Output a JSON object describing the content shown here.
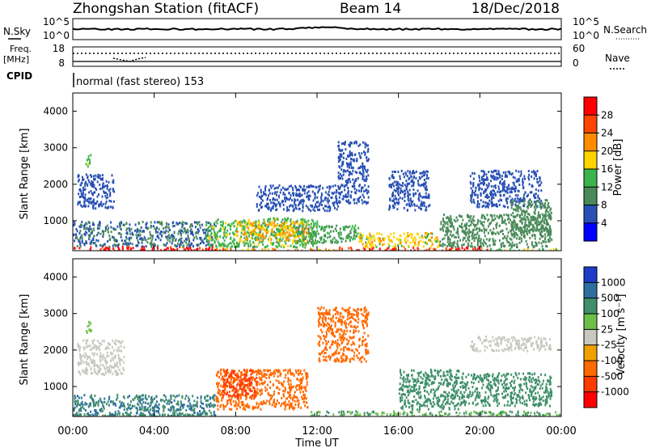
{
  "header": {
    "station": "Zhongshan Station (fitACF)",
    "beam": "Beam 14",
    "date": "18/Dec/2018"
  },
  "strips": {
    "nsky_label": "N.Sky",
    "nsky_ticks": [
      "10^5",
      "10^0"
    ],
    "nsearch_label": "N.Search",
    "nsearch_ticks": [
      "10^5",
      "10^0"
    ],
    "freq_label": "Freq.",
    "freq_unit": "[MHz]",
    "freq_ticks": [
      "18",
      "8"
    ],
    "nave_label": "Nave",
    "nave_ticks": [
      "60",
      "0"
    ],
    "cpid_label": "CPID",
    "cpid_text": "normal (fast stereo) 153"
  },
  "axes": {
    "y_label": "Slant Range [km]",
    "y_ticks": [
      "4000",
      "3000",
      "2000",
      "1000"
    ],
    "x_label": "Time UT",
    "x_ticks": [
      "00:00",
      "04:00",
      "08:00",
      "12:00",
      "16:00",
      "20:00",
      "00:00"
    ]
  },
  "power_scale": {
    "title": "Power [dB]",
    "labels": [
      "28",
      "24",
      "20",
      "16",
      "12",
      "8",
      "4"
    ],
    "colors": [
      "#ff0000",
      "#ff4500",
      "#ff8c00",
      "#ffd400",
      "#3cb44b",
      "#4a8a5a",
      "#2850b4",
      "#0000ff"
    ]
  },
  "velocity_scale": {
    "title": "Velocity [m s⁻¹]",
    "labels": [
      "1000",
      "500",
      "100",
      "25",
      "-25",
      "-100",
      "-500",
      "-1000"
    ],
    "colors": [
      "#1e3cc8",
      "#2e6fa0",
      "#3f8f6a",
      "#6cc04a",
      "#c8c8c0",
      "#f0a000",
      "#ff6a00",
      "#ff3c00",
      "#ff0000"
    ]
  },
  "chart_data": [
    {
      "type": "heatmap",
      "title": "Zhongshan Station (fitACF) Beam 14",
      "xlabel": "Time UT",
      "ylabel": "Slant Range [km]",
      "xlim": [
        0,
        24
      ],
      "ylim": [
        180,
        4500
      ],
      "quantity": "Power [dB]",
      "colorbar_range": [
        0,
        32
      ],
      "regions": [
        {
          "t0": 0.0,
          "t1": 7.0,
          "r0": 180,
          "r1": 320,
          "value": 30
        },
        {
          "t0": 7.0,
          "t1": 13.0,
          "r0": 180,
          "r1": 260,
          "value": 22
        },
        {
          "t0": 13.0,
          "t1": 20.5,
          "r0": 180,
          "r1": 300,
          "value": 28
        },
        {
          "t0": 20.5,
          "t1": 24.0,
          "r0": 180,
          "r1": 260,
          "value": 16
        },
        {
          "t0": 0.0,
          "t1": 7.0,
          "r0": 320,
          "r1": 1000,
          "value": 8
        },
        {
          "t0": 6.5,
          "t1": 12.0,
          "r0": 300,
          "r1": 1100,
          "value": 14
        },
        {
          "t0": 8.0,
          "t1": 11.5,
          "r0": 450,
          "r1": 1000,
          "value": 20
        },
        {
          "t0": 11.0,
          "t1": 14.0,
          "r0": 400,
          "r1": 900,
          "value": 12
        },
        {
          "t0": 14.0,
          "t1": 18.0,
          "r0": 300,
          "r1": 700,
          "value": 18
        },
        {
          "t0": 18.0,
          "t1": 23.5,
          "r0": 300,
          "r1": 1200,
          "value": 10
        },
        {
          "t0": 0.2,
          "t1": 2.0,
          "r0": 1350,
          "r1": 2300,
          "value": 6
        },
        {
          "t0": 0.6,
          "t1": 0.9,
          "r0": 2500,
          "r1": 2850,
          "value": 14
        },
        {
          "t0": 9.0,
          "t1": 13.0,
          "r0": 1300,
          "r1": 2000,
          "value": 6
        },
        {
          "t0": 13.0,
          "t1": 14.5,
          "r0": 1500,
          "r1": 3200,
          "value": 6
        },
        {
          "t0": 15.5,
          "t1": 17.5,
          "r0": 1300,
          "r1": 2400,
          "value": 6
        },
        {
          "t0": 19.5,
          "t1": 23.0,
          "r0": 1400,
          "r1": 2400,
          "value": 6
        },
        {
          "t0": 21.5,
          "t1": 23.5,
          "r0": 600,
          "r1": 1600,
          "value": 10
        }
      ]
    },
    {
      "type": "heatmap",
      "xlabel": "Time UT",
      "ylabel": "Slant Range [km]",
      "xlim": [
        0,
        24
      ],
      "ylim": [
        180,
        4500
      ],
      "quantity": "Velocity [m s-1]",
      "colorbar_range": [
        -1000,
        1000
      ],
      "regions": [
        {
          "t0": 0.0,
          "t1": 7.0,
          "r0": 180,
          "r1": 800,
          "value": 500
        },
        {
          "t0": 0.0,
          "t1": 7.0,
          "r0": 180,
          "r1": 280,
          "value": 150
        },
        {
          "t0": 7.0,
          "t1": 11.5,
          "r0": 400,
          "r1": 1500,
          "value": -200
        },
        {
          "t0": 7.3,
          "t1": 9.0,
          "r0": 700,
          "r1": 1500,
          "value": -600
        },
        {
          "t0": 11.5,
          "t1": 24.0,
          "r0": 180,
          "r1": 350,
          "value": 100
        },
        {
          "t0": 12.0,
          "t1": 14.5,
          "r0": 1700,
          "r1": 3200,
          "value": -300
        },
        {
          "t0": 16.0,
          "t1": 19.0,
          "r0": 400,
          "r1": 1500,
          "value": 200
        },
        {
          "t0": 19.0,
          "t1": 23.5,
          "r0": 500,
          "r1": 1400,
          "value": 400
        },
        {
          "t0": 0.2,
          "t1": 2.5,
          "r0": 1350,
          "r1": 2300,
          "value": 0
        },
        {
          "t0": 19.5,
          "t1": 23.5,
          "r0": 2000,
          "r1": 2400,
          "value": 0
        },
        {
          "t0": 0.6,
          "t1": 0.9,
          "r0": 2500,
          "r1": 2850,
          "value": 50
        }
      ]
    }
  ]
}
